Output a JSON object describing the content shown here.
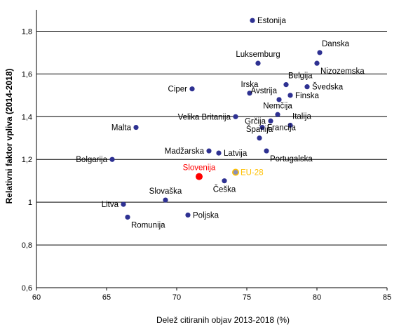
{
  "chart_data": {
    "type": "scatter",
    "xlabel": "Delež citiranih objav  2013-2018 (%)",
    "ylabel": "Relativni faktor vpliva (2014-2018)",
    "xlim": [
      60,
      85
    ],
    "ylim": [
      0.6,
      1.9
    ],
    "x_ticks": [
      "60",
      "65",
      "70",
      "75",
      "80",
      "85"
    ],
    "y_ticks": [
      "0,6",
      "0,8",
      "1",
      "1,2",
      "1,4",
      "1,6",
      "1,8"
    ],
    "grid": "horizontal",
    "colors": {
      "default": "#2e3192",
      "highlight": "#ff0000",
      "eu": "#ffc000",
      "eu_point": "#8a8fb8"
    },
    "points": [
      {
        "label": "Estonija",
        "x": 75.4,
        "y": 1.85,
        "color": "default",
        "label_pos": "right"
      },
      {
        "label": "Danska",
        "x": 80.2,
        "y": 1.7,
        "color": "default",
        "label_pos": "above-right"
      },
      {
        "label": "Luksemburg",
        "x": 75.8,
        "y": 1.65,
        "color": "default",
        "label_pos": "above"
      },
      {
        "label": "Nizozemska",
        "x": 80.0,
        "y": 1.65,
        "color": "default",
        "label_pos": "below-right"
      },
      {
        "label": "Belgija",
        "x": 77.8,
        "y": 1.55,
        "color": "default",
        "label_pos": "above-right"
      },
      {
        "label": "Švedska",
        "x": 79.3,
        "y": 1.54,
        "color": "default",
        "label_pos": "right"
      },
      {
        "label": "Irska",
        "x": 75.2,
        "y": 1.51,
        "color": "default",
        "label_pos": "above"
      },
      {
        "label": "Finska",
        "x": 78.1,
        "y": 1.5,
        "color": "default",
        "label_pos": "right"
      },
      {
        "label": "Ciper",
        "x": 71.1,
        "y": 1.53,
        "color": "default",
        "label_pos": "left"
      },
      {
        "label": "Avstrija",
        "x": 77.3,
        "y": 1.48,
        "color": "default",
        "label_pos": "above-left"
      },
      {
        "label": "Nemčija",
        "x": 77.2,
        "y": 1.41,
        "color": "default",
        "label_pos": "above"
      },
      {
        "label": "Velika Britanija",
        "x": 74.2,
        "y": 1.4,
        "color": "default",
        "label_pos": "left"
      },
      {
        "label": "Grčija",
        "x": 76.7,
        "y": 1.38,
        "color": "default",
        "label_pos": "left"
      },
      {
        "label": "Italija",
        "x": 78.1,
        "y": 1.36,
        "color": "default",
        "label_pos": "above-right"
      },
      {
        "label": "Francija",
        "x": 76.1,
        "y": 1.35,
        "color": "default",
        "label_pos": "right"
      },
      {
        "label": "Malta",
        "x": 67.1,
        "y": 1.35,
        "color": "default",
        "label_pos": "left"
      },
      {
        "label": "Španija",
        "x": 75.9,
        "y": 1.3,
        "color": "default",
        "label_pos": "above"
      },
      {
        "label": "Madžarska",
        "x": 72.3,
        "y": 1.24,
        "color": "default",
        "label_pos": "left"
      },
      {
        "label": "Latvija",
        "x": 73.0,
        "y": 1.23,
        "color": "default",
        "label_pos": "right"
      },
      {
        "label": "Portugalska",
        "x": 76.4,
        "y": 1.24,
        "color": "default",
        "label_pos": "below-right"
      },
      {
        "label": "Bolgarija",
        "x": 65.4,
        "y": 1.2,
        "color": "default",
        "label_pos": "left"
      },
      {
        "label": "EU-28",
        "x": 74.2,
        "y": 1.14,
        "color": "eu",
        "label_pos": "right"
      },
      {
        "label": "Slovenija",
        "x": 71.6,
        "y": 1.12,
        "color": "highlight",
        "label_pos": "above"
      },
      {
        "label": "Češka",
        "x": 73.4,
        "y": 1.1,
        "color": "default",
        "label_pos": "below"
      },
      {
        "label": "Slovaška",
        "x": 69.2,
        "y": 1.01,
        "color": "default",
        "label_pos": "above"
      },
      {
        "label": "Litva",
        "x": 66.2,
        "y": 0.99,
        "color": "default",
        "label_pos": "left"
      },
      {
        "label": "Romunija",
        "x": 66.5,
        "y": 0.93,
        "color": "default",
        "label_pos": "below-right"
      },
      {
        "label": "Poljska",
        "x": 70.8,
        "y": 0.94,
        "color": "default",
        "label_pos": "right"
      }
    ]
  }
}
